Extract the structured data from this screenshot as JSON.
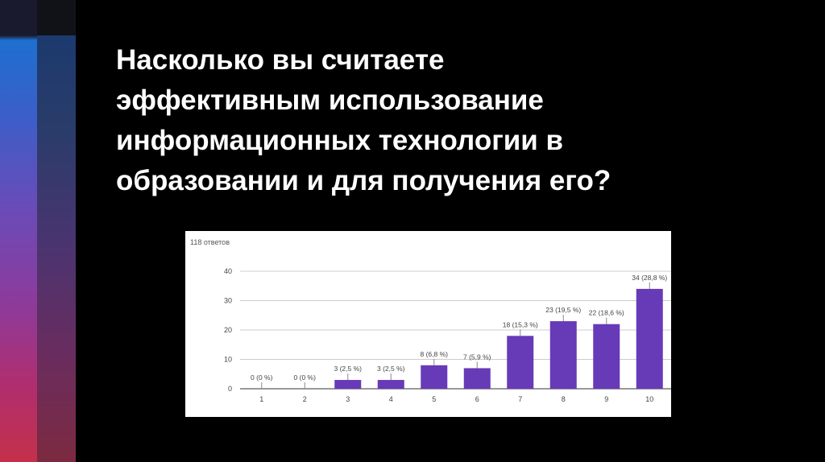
{
  "slide": {
    "title_lines": [
      "Насколько вы считаете",
      "эффективным использование",
      "информационных технологии в",
      "образовании и для получения его?"
    ]
  },
  "chart_data": {
    "type": "bar",
    "title": "",
    "subtitle": "118 ответов",
    "xlabel": "",
    "ylabel": "",
    "categories": [
      "1",
      "2",
      "3",
      "4",
      "5",
      "6",
      "7",
      "8",
      "9",
      "10"
    ],
    "values": [
      0,
      0,
      3,
      3,
      8,
      7,
      18,
      23,
      22,
      34
    ],
    "data_labels": [
      "0 (0 %)",
      "0 (0 %)",
      "3 (2,5 %)",
      "3 (2,5 %)",
      "8 (6,8 %)",
      "7 (5,9 %)",
      "18 (15,3 %)",
      "23 (19,5 %)",
      "22 (18,6 %)",
      "34 (28,8 %)"
    ],
    "y_ticks": [
      "0",
      "10",
      "20",
      "30",
      "40"
    ],
    "ylim": [
      0,
      40
    ],
    "grid": true,
    "bar_color": "#673ab7"
  }
}
